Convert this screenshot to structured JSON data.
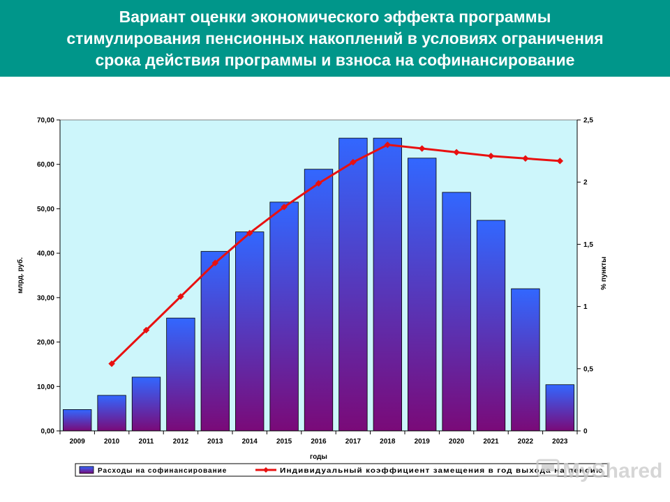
{
  "header": {
    "title_line1": "Вариант оценки экономического эффекта программы",
    "title_line2": "стимулирования пенсионных накоплений в условиях ограничения",
    "title_line3": "срока действия программы и взноса на софинансирование"
  },
  "colors": {
    "header_bg": "#00968a",
    "plot_bg": "#cdf6fb",
    "bar_top": "#3267ff",
    "bar_bottom": "#7a0a78",
    "line": "#e81010"
  },
  "chart_data": {
    "type": "bar",
    "categories": [
      "2009",
      "2010",
      "2011",
      "2012",
      "2013",
      "2014",
      "2015",
      "2016",
      "2017",
      "2018",
      "2019",
      "2020",
      "2021",
      "2022",
      "2023"
    ],
    "xlabel": "годы",
    "ylabel": "млрд. руб.",
    "y2label": "% пункты",
    "ylim": [
      0,
      70
    ],
    "y2lim": [
      0,
      2.5
    ],
    "yticks": [
      "0,00",
      "10,00",
      "20,00",
      "30,00",
      "40,00",
      "50,00",
      "60,00",
      "70,00"
    ],
    "y2ticks": [
      "0",
      "0,5",
      "1",
      "1,5",
      "2",
      "2,5"
    ],
    "legend_position": "bottom",
    "grid": false,
    "series": [
      {
        "name": "Расходы на софинансирование",
        "type": "bar",
        "axis": "left",
        "values": [
          4.8,
          8.0,
          12.1,
          25.4,
          40.4,
          44.8,
          51.5,
          58.9,
          65.9,
          65.9,
          61.4,
          53.7,
          47.4,
          32.0,
          10.4
        ]
      },
      {
        "name": "Индивидуальный коэффициент замещения в год выхода на пенсию",
        "type": "line",
        "axis": "right",
        "values": [
          null,
          0.54,
          0.81,
          1.08,
          1.35,
          1.59,
          1.8,
          1.99,
          2.16,
          2.3,
          2.27,
          2.24,
          2.21,
          2.19,
          2.17
        ]
      }
    ]
  },
  "watermark": {
    "text": "MyShared"
  }
}
